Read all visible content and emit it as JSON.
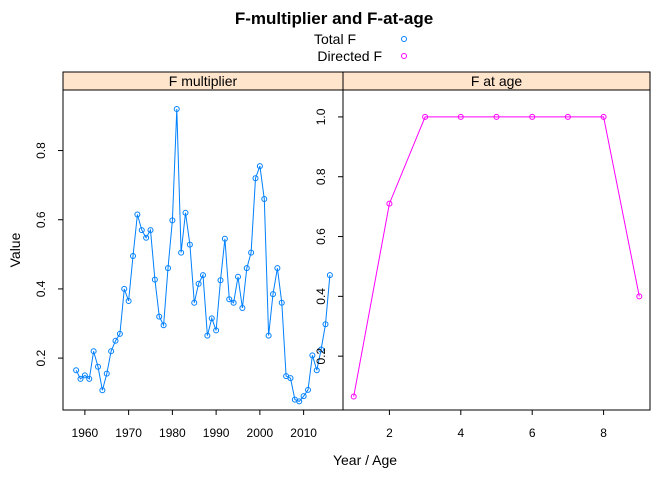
{
  "title": "F-multiplier and F-at-age",
  "legend": [
    {
      "label": "Total F",
      "color": "#0080ff"
    },
    {
      "label": "Directed F",
      "color": "#ff00ff"
    }
  ],
  "xlabel": "Year / Age",
  "ylabel": "Value",
  "strip_color": "#ffe5cc",
  "chart_data": [
    {
      "type": "line",
      "panel_title": "F multiplier",
      "series_name": "Total F",
      "color": "#0080ff",
      "xlim": [
        1955,
        2019
      ],
      "ylim": [
        0.05,
        0.975
      ],
      "xticks": [
        1960,
        1970,
        1980,
        1990,
        2000,
        2010
      ],
      "yticks": [
        0.2,
        0.4,
        0.6,
        0.8
      ],
      "x": [
        1958,
        1959,
        1960,
        1961,
        1962,
        1963,
        1964,
        1965,
        1966,
        1967,
        1968,
        1969,
        1970,
        1971,
        1972,
        1973,
        1974,
        1975,
        1976,
        1977,
        1978,
        1979,
        1980,
        1981,
        1982,
        1983,
        1984,
        1985,
        1986,
        1987,
        1988,
        1989,
        1990,
        1991,
        1992,
        1993,
        1994,
        1995,
        1996,
        1997,
        1998,
        1999,
        2000,
        2001,
        2002,
        2003,
        2004,
        2005,
        2006,
        2007,
        2008,
        2009,
        2010,
        2011,
        2012,
        2013,
        2014,
        2015,
        2016
      ],
      "y": [
        0.165,
        0.14,
        0.15,
        0.14,
        0.22,
        0.175,
        0.107,
        0.155,
        0.22,
        0.25,
        0.27,
        0.4,
        0.365,
        0.495,
        0.615,
        0.57,
        0.548,
        0.57,
        0.427,
        0.32,
        0.295,
        0.46,
        0.598,
        0.92,
        0.505,
        0.62,
        0.528,
        0.36,
        0.415,
        0.44,
        0.265,
        0.315,
        0.28,
        0.425,
        0.545,
        0.37,
        0.36,
        0.435,
        0.345,
        0.46,
        0.505,
        0.72,
        0.755,
        0.66,
        0.265,
        0.385,
        0.46,
        0.36,
        0.148,
        0.142,
        0.08,
        0.075,
        0.09,
        0.108,
        0.208,
        0.165,
        0.225,
        0.298,
        0.44
      ]
    },
    {
      "type": "line",
      "panel_title": "F at age",
      "series_name": "Directed F",
      "color": "#ff00ff",
      "xlim": [
        0.7,
        9.3
      ],
      "ylim": [
        0.02,
        1.09
      ],
      "xticks": [
        2,
        4,
        6,
        8
      ],
      "yticks": [
        0.2,
        0.4,
        0.6,
        0.8,
        1.0
      ],
      "yticklabels": [
        "0.2",
        "0.4",
        "0.6",
        "0.8",
        "1.0"
      ],
      "x": [
        1,
        2,
        3,
        4,
        5,
        6,
        7,
        8,
        9
      ],
      "y": [
        0.065,
        0.71,
        1.0,
        1.0,
        1.0,
        1.0,
        1.0,
        1.0,
        0.4
      ]
    }
  ]
}
